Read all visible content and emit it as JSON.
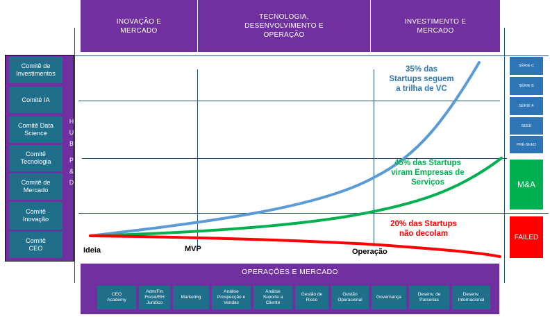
{
  "columns": [
    {
      "label": "INOVAÇÃO E\nMERCADO"
    },
    {
      "label": "TECNOLOGIA,\nDESENVOLVIMENTO E\nOPERAÇÃO"
    },
    {
      "label": "INVESTIMENTO E\nMERCADO"
    }
  ],
  "committees": [
    {
      "label": "Comitê de\nInvestimentos"
    },
    {
      "label": "Comitê IA"
    },
    {
      "label": "Comitê Data\nScience"
    },
    {
      "label": "Comitê\nTecnologia"
    },
    {
      "label": "Comitê de\nMercado"
    },
    {
      "label": "Comitê\nInovação"
    },
    {
      "label": "Comitê\nCEO"
    }
  ],
  "hub": [
    "H",
    "U",
    "B",
    "P",
    "&",
    "D"
  ],
  "stages": [
    "SÉRIE C",
    "SÉRIE B",
    "SÉRIE A",
    "SEED",
    "PRÉ-SEED"
  ],
  "ma_label": "M&A",
  "failed_label": "FAILED",
  "milestones": {
    "ideia": "Ideia",
    "mvp": "MVP",
    "operacao": "Operação"
  },
  "notes": {
    "vc": "35% das\nStartups seguem\na trilha de VC",
    "empresas": "45% das Startups\nviram Empresas de\nServiços",
    "failed": "20% das Startups\nnão decolam"
  },
  "colors": {
    "purple": "#7030a0",
    "teal": "#1f6f8b",
    "blue": "#5b9bd5",
    "green": "#00b050",
    "red": "#ff0000",
    "stage_blue": "#2e75b6"
  },
  "ops": {
    "title": "OPERAÇÕES E MERCADO",
    "items": [
      {
        "label": "CEO\nAcademy"
      },
      {
        "label": "Adm/Fin\nFiscal/RH\nJurídico"
      },
      {
        "label": "Marketing"
      },
      {
        "label": "Análise\nProspecção e\nVendas"
      },
      {
        "label": "Análise\nSuporte a\nCliente"
      },
      {
        "label": "Gestão de\nRisco"
      },
      {
        "label": "Gestão\nOperacional"
      },
      {
        "label": "Governança"
      },
      {
        "label": "Desenv. de\nParcerias"
      },
      {
        "label": "Desenv.\nInternacional"
      }
    ]
  }
}
